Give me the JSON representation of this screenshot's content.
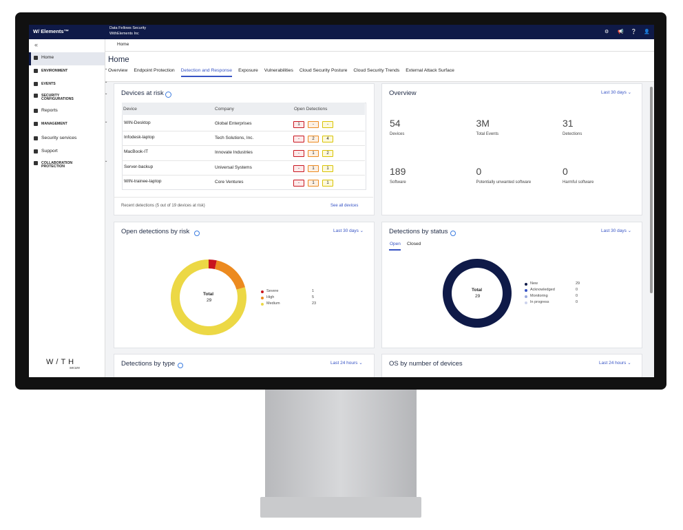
{
  "topbar": {
    "brand": "W/ Elements™",
    "org": "Data Fellows Security",
    "account": "WithElements Inc"
  },
  "breadcrumb": "Home",
  "sidebar": {
    "items": [
      {
        "label": "Home",
        "active": true
      },
      {
        "label": "ENVIRONMENT",
        "expandable": true
      },
      {
        "label": "EVENTS",
        "expandable": true
      },
      {
        "label": "SECURITY CONFIGURATIONS",
        "expandable": true
      },
      {
        "label": "Reports"
      },
      {
        "label": "MANAGEMENT",
        "expandable": true
      },
      {
        "label": "Security services"
      },
      {
        "label": "Support"
      },
      {
        "label": "COLLABORATION PROTECTION",
        "expandable": true
      }
    ],
    "logo": "W/TH",
    "logo_sub": "secure"
  },
  "page": {
    "title": "Home",
    "tabs": [
      {
        "label": "Overview"
      },
      {
        "label": "Endpoint Protection"
      },
      {
        "label": "Detection and Response",
        "active": true
      },
      {
        "label": "Exposure"
      },
      {
        "label": "Vulnerabilities"
      },
      {
        "label": "Cloud Security Posture"
      },
      {
        "label": "Cloud Security Trends"
      },
      {
        "label": "External Attack Surface"
      }
    ]
  },
  "devices_at_risk": {
    "title": "Devices at risk",
    "columns": [
      "Device",
      "Company",
      "Open Detections"
    ],
    "rows": [
      {
        "device": "WIN-Desktop",
        "company": "Global Enterprises",
        "detections": [
          1,
          "-",
          "-"
        ]
      },
      {
        "device": "Infodesk-laptop",
        "company": "Tech Solutions, Inc.",
        "detections": [
          "-",
          2,
          4
        ]
      },
      {
        "device": "MacBook-IT",
        "company": "Innovate Industries",
        "detections": [
          "-",
          1,
          2
        ]
      },
      {
        "device": "Server-backup",
        "company": "Universal Systems",
        "detections": [
          "-",
          1,
          1
        ]
      },
      {
        "device": "WIN-trainee-laptop",
        "company": "Core Ventures",
        "detections": [
          "-",
          1,
          1
        ]
      }
    ],
    "footer": "Recent detections (5 out of 19 devices at risk)",
    "link": "See all devices"
  },
  "overview": {
    "title": "Overview",
    "period": "Last 30 days",
    "stats": [
      {
        "value": 54,
        "label": "Devices"
      },
      {
        "value": "3M",
        "label": "Total Events"
      },
      {
        "value": 31,
        "label": "Detections"
      },
      {
        "value": 189,
        "label": "Software"
      },
      {
        "value": 0,
        "label": "Potentially unwanted software"
      },
      {
        "value": 0,
        "label": "Harmful software"
      }
    ]
  },
  "open_detections": {
    "title": "Open detections by risk",
    "period": "Last 30 days",
    "total_label": "Total",
    "total": 29,
    "segments": [
      {
        "name": "Severe",
        "value": 1,
        "color": "#c8141e"
      },
      {
        "name": "High",
        "value": 5,
        "color": "#ec8a1f"
      },
      {
        "name": "Medium",
        "value": 23,
        "color": "#ecd845"
      }
    ]
  },
  "detections_by_status": {
    "title": "Detections by status",
    "period": "Last 30 days",
    "tabs": [
      {
        "label": "Open",
        "active": true
      },
      {
        "label": "Closed"
      }
    ],
    "total_label": "Total",
    "total": 29,
    "segments": [
      {
        "name": "New",
        "value": 29,
        "color": "#0f1a48"
      },
      {
        "name": "Acknowledged",
        "value": 0,
        "color": "#3552c4"
      },
      {
        "name": "Monitoring",
        "value": 0,
        "color": "#9aa8dc"
      },
      {
        "name": "In progress",
        "value": 0,
        "color": "#ccd2ec"
      }
    ]
  },
  "detections_by_type": {
    "title": "Detections by type",
    "period": "Last 24 hours"
  },
  "os_by_devices": {
    "title": "OS by number of devices",
    "period": "Last 24 hours"
  }
}
